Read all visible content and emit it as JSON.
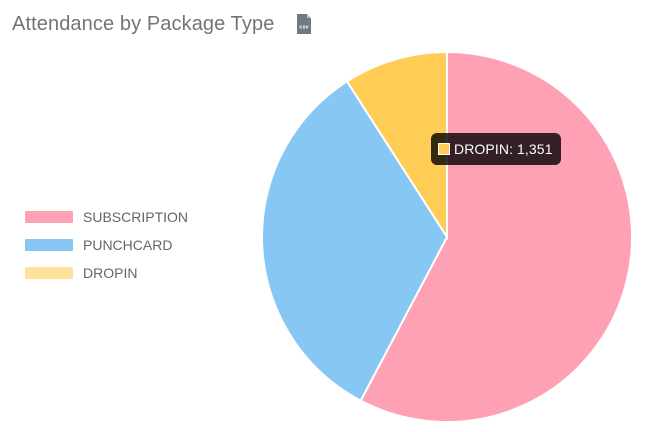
{
  "header": {
    "title": "Attendance by Package Type",
    "csv_icon_label": "csv"
  },
  "tooltip": {
    "label": "DROPIN",
    "value": "1,351",
    "color": "#FFCD56"
  },
  "chart_data": {
    "type": "pie",
    "title": "Attendance by Package Type",
    "legend_position": "left",
    "labels": [
      "SUBSCRIPTION",
      "PUNCHCARD",
      "DROPIN"
    ],
    "values": [
      8580,
      4932,
      1351
    ],
    "colors": [
      "#FFA1B5",
      "#86C7F3",
      "#FFCD56"
    ],
    "legend_colors": [
      "#FFA1B5",
      "#86C7F3",
      "#FFE29A"
    ]
  }
}
